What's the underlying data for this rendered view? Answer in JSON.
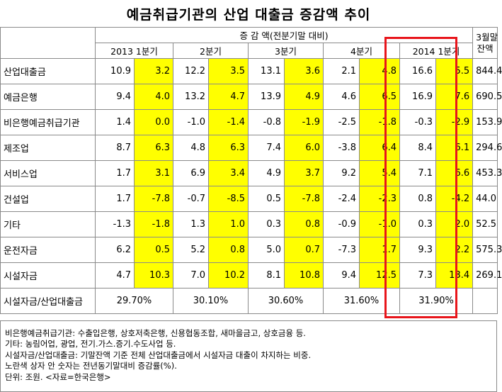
{
  "title": "예금취급기관의 산업 대출금 증감액 추이",
  "header": {
    "change_label": "증 감 액(전분기말 대비)",
    "quarters": [
      "2013 1분기",
      "2분기",
      "3분기",
      "4분기",
      "2014 1분기"
    ],
    "balance_label_line1": "3월말",
    "balance_label_line2": "잔액"
  },
  "rows": [
    {
      "label": "산업대출금",
      "values": [
        "10.9",
        "3.2",
        "12.2",
        "3.5",
        "13.1",
        "3.6",
        "2.1",
        "4.8",
        "16.6",
        "5.5"
      ],
      "balance": "844.4"
    },
    {
      "label": "예금은행",
      "values": [
        "9.4",
        "4.0",
        "13.2",
        "4.7",
        "13.9",
        "4.9",
        "4.6",
        "6.5",
        "16.9",
        "7.6"
      ],
      "balance": "690.5"
    },
    {
      "label": "비은행예금취급기관",
      "values": [
        "1.4",
        "0.0",
        "-1.0",
        "-1.4",
        "-0.8",
        "-1.9",
        "-2.5",
        "-1.8",
        "-0.3",
        "-2.9"
      ],
      "balance": "153.9"
    },
    {
      "label": "제조업",
      "values": [
        "8.7",
        "6.3",
        "4.8",
        "6.3",
        "7.4",
        "6.0",
        "-3.8",
        "6.4",
        "8.4",
        "6.1"
      ],
      "balance": "294.6"
    },
    {
      "label": "서비스업",
      "values": [
        "1.7",
        "3.1",
        "6.9",
        "3.4",
        "4.9",
        "3.7",
        "9.2",
        "5.4",
        "7.1",
        "6.6"
      ],
      "balance": "453.3"
    },
    {
      "label": "건설업",
      "values": [
        "1.7",
        "-7.8",
        "-0.7",
        "-8.5",
        "0.5",
        "-7.8",
        "-2.4",
        "-2.3",
        "0.8",
        "-4.2"
      ],
      "balance": "44.0"
    },
    {
      "label": "기타",
      "values": [
        "-1.3",
        "-1.8",
        "1.3",
        "1.0",
        "0.3",
        "0.8",
        "-0.9",
        "-1.0",
        "0.3",
        "2.0"
      ],
      "balance": "52.5"
    },
    {
      "label": "운전자금",
      "values": [
        "6.2",
        "0.5",
        "5.2",
        "0.8",
        "5.0",
        "0.7",
        "-7.3",
        "1.7",
        "9.3",
        "2.2"
      ],
      "balance": "575.3"
    },
    {
      "label": "시설자금",
      "values": [
        "4.7",
        "10.3",
        "7.0",
        "10.2",
        "8.1",
        "10.8",
        "9.4",
        "12.5",
        "7.3",
        "13.4"
      ],
      "balance": "269.1"
    }
  ],
  "ratio_row": {
    "label": "시설자금/산업대출금",
    "values": [
      "29.70%",
      "30.10%",
      "30.60%",
      "31.60%",
      "31.90%"
    ]
  },
  "notes": [
    "비은행예금취급기관: 수출입은행, 상호저축은행, 신용협동조합, 새마을금고, 상호금융 등.",
    "기타: 농림어업, 광업, 전기.가스.증기.수도사업 등.",
    "시설자금/산업대출금: 기말잔액 기준 전체 산업대출금에서 시설자금 대출이 차지하는 비중.",
    "노란색 상자 안 숫자는 전년동기말대비 증감률(%).",
    "단위: 조원. <자료=한국은행>"
  ],
  "colors": {
    "highlight": "#ffff00",
    "box": "#e8151b"
  }
}
